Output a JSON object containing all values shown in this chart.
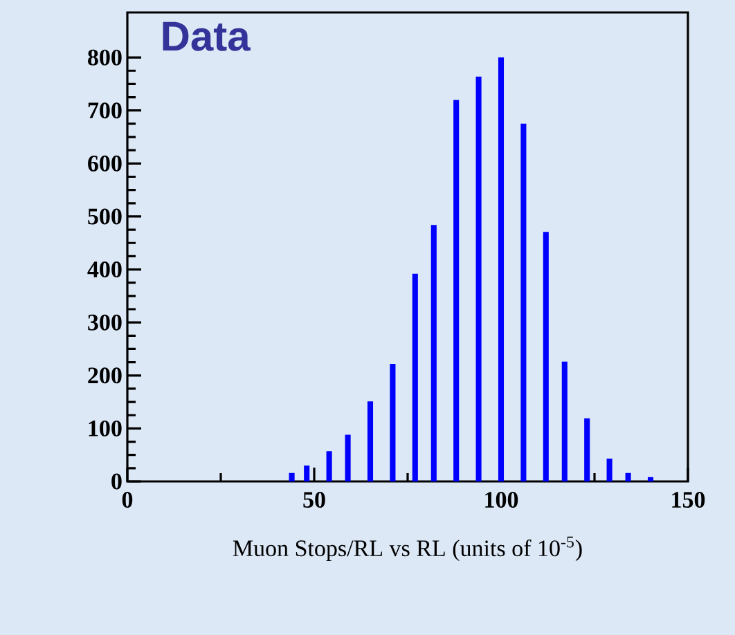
{
  "chart_data": {
    "type": "bar",
    "title": "Data",
    "xlabel": "Muon Stops/RL vs RL  (units of 10$^{-5}$)",
    "x": [
      44,
      48,
      54,
      59,
      65,
      71,
      77,
      82,
      88,
      94,
      100,
      106,
      112,
      117,
      123,
      129,
      134,
      140
    ],
    "values": [
      16,
      30,
      57,
      88,
      151,
      222,
      392,
      484,
      720,
      764,
      800,
      675,
      471,
      226,
      119,
      43,
      16,
      8
    ],
    "color": "#0000ff",
    "xlim": [
      0,
      150
    ],
    "ylim": [
      0,
      885
    ],
    "xticks": [
      0,
      50,
      100,
      150
    ],
    "yticks": [
      0,
      100,
      200,
      300,
      400,
      500,
      600,
      700,
      800
    ]
  }
}
